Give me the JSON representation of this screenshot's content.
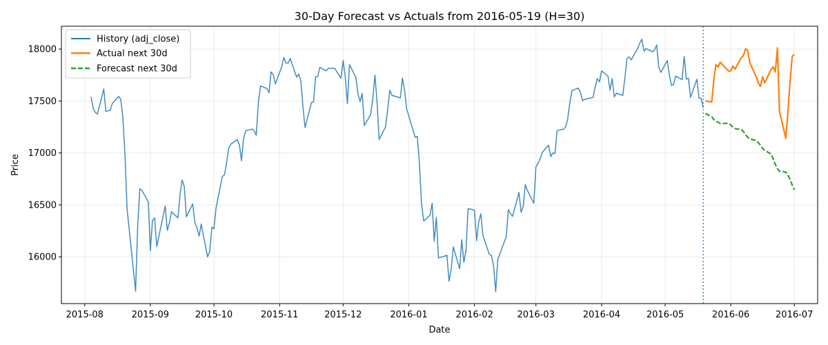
{
  "chart_data": {
    "type": "line",
    "title": "30-Day Forecast vs Actuals from 2016-05-19 (H=30)",
    "xlabel": "Date",
    "ylabel": "Price",
    "x_range": [
      "2015-07-21",
      "2016-07-12"
    ],
    "ylim": [
      15550,
      18220
    ],
    "x_ticks": [
      "2015-08-01",
      "2015-09-01",
      "2015-10-01",
      "2015-11-01",
      "2015-12-01",
      "2016-01-01",
      "2016-02-01",
      "2016-03-01",
      "2016-04-01",
      "2016-05-01",
      "2016-06-01",
      "2016-07-01"
    ],
    "x_tick_labels": [
      "2015-08",
      "2015-09",
      "2015-10",
      "2015-11",
      "2015-12",
      "2016-01",
      "2016-02",
      "2016-03",
      "2016-04",
      "2016-05",
      "2016-06",
      "2016-07"
    ],
    "y_ticks": [
      16000,
      16500,
      17000,
      17500,
      18000
    ],
    "y_tick_labels": [
      "16000",
      "16500",
      "17000",
      "17500",
      "18000"
    ],
    "grid": true,
    "legend_position": "top-left",
    "forecast_origin": "2016-05-19",
    "series": [
      {
        "name": "History (adj_close)",
        "color": "#1f77b4",
        "style": "solid",
        "points": [
          [
            "2015-08-04",
            17540
          ],
          [
            "2015-08-05",
            17430
          ],
          [
            "2015-08-06",
            17390
          ],
          [
            "2015-08-07",
            17375
          ],
          [
            "2015-08-10",
            17615
          ],
          [
            "2015-08-11",
            17400
          ],
          [
            "2015-08-12",
            17405
          ],
          [
            "2015-08-13",
            17410
          ],
          [
            "2015-08-14",
            17475
          ],
          [
            "2015-08-17",
            17545
          ],
          [
            "2015-08-18",
            17515
          ],
          [
            "2015-08-19",
            17350
          ],
          [
            "2015-08-20",
            16990
          ],
          [
            "2015-08-21",
            16460
          ],
          [
            "2015-08-24",
            15870
          ],
          [
            "2015-08-25",
            15670
          ],
          [
            "2015-08-26",
            16290
          ],
          [
            "2015-08-27",
            16655
          ],
          [
            "2015-08-28",
            16640
          ],
          [
            "2015-08-31",
            16530
          ],
          [
            "2015-09-01",
            16060
          ],
          [
            "2015-09-02",
            16350
          ],
          [
            "2015-09-03",
            16375
          ],
          [
            "2015-09-04",
            16100
          ],
          [
            "2015-09-08",
            16490
          ],
          [
            "2015-09-09",
            16255
          ],
          [
            "2015-09-10",
            16330
          ],
          [
            "2015-09-11",
            16435
          ],
          [
            "2015-09-14",
            16375
          ],
          [
            "2015-09-15",
            16600
          ],
          [
            "2015-09-16",
            16740
          ],
          [
            "2015-09-17",
            16675
          ],
          [
            "2015-09-18",
            16385
          ],
          [
            "2015-09-21",
            16510
          ],
          [
            "2015-09-22",
            16330
          ],
          [
            "2015-09-23",
            16280
          ],
          [
            "2015-09-24",
            16200
          ],
          [
            "2015-09-25",
            16315
          ],
          [
            "2015-09-28",
            16000
          ],
          [
            "2015-09-29",
            16050
          ],
          [
            "2015-09-30",
            16285
          ],
          [
            "2015-10-01",
            16270
          ],
          [
            "2015-10-02",
            16470
          ],
          [
            "2015-10-05",
            16775
          ],
          [
            "2015-10-06",
            16790
          ],
          [
            "2015-10-07",
            16910
          ],
          [
            "2015-10-08",
            17050
          ],
          [
            "2015-10-09",
            17085
          ],
          [
            "2015-10-12",
            17130
          ],
          [
            "2015-10-13",
            17080
          ],
          [
            "2015-10-14",
            16925
          ],
          [
            "2015-10-15",
            17140
          ],
          [
            "2015-10-16",
            17215
          ],
          [
            "2015-10-19",
            17230
          ],
          [
            "2015-10-20",
            17215
          ],
          [
            "2015-10-21",
            17170
          ],
          [
            "2015-10-22",
            17490
          ],
          [
            "2015-10-23",
            17645
          ],
          [
            "2015-10-26",
            17620
          ],
          [
            "2015-10-27",
            17580
          ],
          [
            "2015-10-28",
            17780
          ],
          [
            "2015-10-29",
            17755
          ],
          [
            "2015-10-30",
            17665
          ],
          [
            "2015-11-02",
            17830
          ],
          [
            "2015-11-03",
            17920
          ],
          [
            "2015-11-04",
            17865
          ],
          [
            "2015-11-05",
            17865
          ],
          [
            "2015-11-06",
            17910
          ],
          [
            "2015-11-09",
            17730
          ],
          [
            "2015-11-10",
            17760
          ],
          [
            "2015-11-11",
            17700
          ],
          [
            "2015-11-12",
            17450
          ],
          [
            "2015-11-13",
            17245
          ],
          [
            "2015-11-16",
            17485
          ],
          [
            "2015-11-17",
            17490
          ],
          [
            "2015-11-18",
            17735
          ],
          [
            "2015-11-19",
            17735
          ],
          [
            "2015-11-20",
            17825
          ],
          [
            "2015-11-23",
            17790
          ],
          [
            "2015-11-24",
            17815
          ],
          [
            "2015-11-25",
            17815
          ],
          [
            "2015-11-27",
            17815
          ],
          [
            "2015-11-30",
            17720
          ],
          [
            "2015-12-01",
            17890
          ],
          [
            "2015-12-02",
            17730
          ],
          [
            "2015-12-03",
            17475
          ],
          [
            "2015-12-04",
            17850
          ],
          [
            "2015-12-07",
            17730
          ],
          [
            "2015-12-08",
            17570
          ],
          [
            "2015-12-09",
            17495
          ],
          [
            "2015-12-10",
            17575
          ],
          [
            "2015-12-11",
            17265
          ],
          [
            "2015-12-14",
            17370
          ],
          [
            "2015-12-15",
            17525
          ],
          [
            "2015-12-16",
            17750
          ],
          [
            "2015-12-17",
            17495
          ],
          [
            "2015-12-18",
            17130
          ],
          [
            "2015-12-21",
            17250
          ],
          [
            "2015-12-22",
            17415
          ],
          [
            "2015-12-23",
            17605
          ],
          [
            "2015-12-24",
            17555
          ],
          [
            "2015-12-28",
            17530
          ],
          [
            "2015-12-29",
            17720
          ],
          [
            "2015-12-30",
            17605
          ],
          [
            "2015-12-31",
            17425
          ],
          [
            "2016-01-04",
            17150
          ],
          [
            "2016-01-05",
            17160
          ],
          [
            "2016-01-06",
            16905
          ],
          [
            "2016-01-07",
            16515
          ],
          [
            "2016-01-08",
            16345
          ],
          [
            "2016-01-11",
            16400
          ],
          [
            "2016-01-12",
            16515
          ],
          [
            "2016-01-13",
            16150
          ],
          [
            "2016-01-14",
            16380
          ],
          [
            "2016-01-15",
            15990
          ],
          [
            "2016-01-19",
            16015
          ],
          [
            "2016-01-20",
            15765
          ],
          [
            "2016-01-21",
            15880
          ],
          [
            "2016-01-22",
            16095
          ],
          [
            "2016-01-25",
            15885
          ],
          [
            "2016-01-26",
            16165
          ],
          [
            "2016-01-27",
            15945
          ],
          [
            "2016-01-28",
            16070
          ],
          [
            "2016-01-29",
            16465
          ],
          [
            "2016-02-01",
            16450
          ],
          [
            "2016-02-02",
            16155
          ],
          [
            "2016-02-03",
            16335
          ],
          [
            "2016-02-04",
            16415
          ],
          [
            "2016-02-05",
            16205
          ],
          [
            "2016-02-08",
            16025
          ],
          [
            "2016-02-09",
            16015
          ],
          [
            "2016-02-10",
            15915
          ],
          [
            "2016-02-11",
            15665
          ],
          [
            "2016-02-12",
            15975
          ],
          [
            "2016-02-16",
            16195
          ],
          [
            "2016-02-17",
            16455
          ],
          [
            "2016-02-18",
            16415
          ],
          [
            "2016-02-19",
            16390
          ],
          [
            "2016-02-22",
            16620
          ],
          [
            "2016-02-23",
            16430
          ],
          [
            "2016-02-24",
            16485
          ],
          [
            "2016-02-25",
            16695
          ],
          [
            "2016-02-26",
            16640
          ],
          [
            "2016-02-29",
            16515
          ],
          [
            "2016-03-01",
            16865
          ],
          [
            "2016-03-02",
            16900
          ],
          [
            "2016-03-03",
            16945
          ],
          [
            "2016-03-04",
            17005
          ],
          [
            "2016-03-07",
            17075
          ],
          [
            "2016-03-08",
            16965
          ],
          [
            "2016-03-09",
            17000
          ],
          [
            "2016-03-10",
            16995
          ],
          [
            "2016-03-11",
            17215
          ],
          [
            "2016-03-14",
            17230
          ],
          [
            "2016-03-15",
            17250
          ],
          [
            "2016-03-16",
            17325
          ],
          [
            "2016-03-17",
            17480
          ],
          [
            "2016-03-18",
            17600
          ],
          [
            "2016-03-21",
            17625
          ],
          [
            "2016-03-22",
            17585
          ],
          [
            "2016-03-23",
            17505
          ],
          [
            "2016-03-24",
            17515
          ],
          [
            "2016-03-28",
            17535
          ],
          [
            "2016-03-29",
            17635
          ],
          [
            "2016-03-30",
            17715
          ],
          [
            "2016-03-31",
            17685
          ],
          [
            "2016-04-01",
            17790
          ],
          [
            "2016-04-04",
            17740
          ],
          [
            "2016-04-05",
            17605
          ],
          [
            "2016-04-06",
            17715
          ],
          [
            "2016-04-07",
            17540
          ],
          [
            "2016-04-08",
            17575
          ],
          [
            "2016-04-11",
            17555
          ],
          [
            "2016-04-12",
            17720
          ],
          [
            "2016-04-13",
            17910
          ],
          [
            "2016-04-14",
            17925
          ],
          [
            "2016-04-15",
            17895
          ],
          [
            "2016-04-18",
            18005
          ],
          [
            "2016-04-19",
            18055
          ],
          [
            "2016-04-20",
            18095
          ],
          [
            "2016-04-21",
            17980
          ],
          [
            "2016-04-22",
            18005
          ],
          [
            "2016-04-25",
            17975
          ],
          [
            "2016-04-26",
            17990
          ],
          [
            "2016-04-27",
            18040
          ],
          [
            "2016-04-28",
            17830
          ],
          [
            "2016-04-29",
            17775
          ],
          [
            "2016-05-02",
            17890
          ],
          [
            "2016-05-03",
            17750
          ],
          [
            "2016-05-04",
            17650
          ],
          [
            "2016-05-05",
            17660
          ],
          [
            "2016-05-06",
            17740
          ],
          [
            "2016-05-09",
            17705
          ],
          [
            "2016-05-10",
            17930
          ],
          [
            "2016-05-11",
            17710
          ],
          [
            "2016-05-12",
            17720
          ],
          [
            "2016-05-13",
            17535
          ],
          [
            "2016-05-16",
            17710
          ],
          [
            "2016-05-17",
            17530
          ],
          [
            "2016-05-18",
            17525
          ],
          [
            "2016-05-19",
            17435
          ]
        ]
      },
      {
        "name": "Actual next 30d",
        "color": "#ff7f0e",
        "style": "solid",
        "points": [
          [
            "2016-05-20",
            17500
          ],
          [
            "2016-05-23",
            17492
          ],
          [
            "2016-05-24",
            17706
          ],
          [
            "2016-05-25",
            17851
          ],
          [
            "2016-05-26",
            17828
          ],
          [
            "2016-05-27",
            17873
          ],
          [
            "2016-05-31",
            17787
          ],
          [
            "2016-06-01",
            17789
          ],
          [
            "2016-06-02",
            17838
          ],
          [
            "2016-06-03",
            17807
          ],
          [
            "2016-06-06",
            17920
          ],
          [
            "2016-06-07",
            17938
          ],
          [
            "2016-06-08",
            18005
          ],
          [
            "2016-06-09",
            17985
          ],
          [
            "2016-06-10",
            17865
          ],
          [
            "2016-06-13",
            17733
          ],
          [
            "2016-06-14",
            17675
          ],
          [
            "2016-06-15",
            17640
          ],
          [
            "2016-06-16",
            17733
          ],
          [
            "2016-06-17",
            17675
          ],
          [
            "2016-06-20",
            17804
          ],
          [
            "2016-06-21",
            17830
          ],
          [
            "2016-06-22",
            17780
          ],
          [
            "2016-06-23",
            18011
          ],
          [
            "2016-06-24",
            17400
          ],
          [
            "2016-06-27",
            17140
          ],
          [
            "2016-06-28",
            17410
          ],
          [
            "2016-06-29",
            17695
          ],
          [
            "2016-06-30",
            17930
          ],
          [
            "2016-07-01",
            17949
          ]
        ]
      },
      {
        "name": "Forecast next 30d",
        "color": "#2ca02c",
        "style": "dashed",
        "points": [
          [
            "2016-05-20",
            17380
          ],
          [
            "2016-05-23",
            17350
          ],
          [
            "2016-05-24",
            17320
          ],
          [
            "2016-05-25",
            17305
          ],
          [
            "2016-05-26",
            17295
          ],
          [
            "2016-05-27",
            17285
          ],
          [
            "2016-05-31",
            17285
          ],
          [
            "2016-06-01",
            17270
          ],
          [
            "2016-06-02",
            17245
          ],
          [
            "2016-06-03",
            17235
          ],
          [
            "2016-06-06",
            17225
          ],
          [
            "2016-06-07",
            17205
          ],
          [
            "2016-06-08",
            17175
          ],
          [
            "2016-06-09",
            17150
          ],
          [
            "2016-06-10",
            17135
          ],
          [
            "2016-06-13",
            17120
          ],
          [
            "2016-06-14",
            17100
          ],
          [
            "2016-06-15",
            17075
          ],
          [
            "2016-06-16",
            17045
          ],
          [
            "2016-06-17",
            17025
          ],
          [
            "2016-06-20",
            16990
          ],
          [
            "2016-06-21",
            16945
          ],
          [
            "2016-06-22",
            16890
          ],
          [
            "2016-06-23",
            16850
          ],
          [
            "2016-06-24",
            16825
          ],
          [
            "2016-06-27",
            16815
          ],
          [
            "2016-06-28",
            16785
          ],
          [
            "2016-06-29",
            16745
          ],
          [
            "2016-06-30",
            16690
          ],
          [
            "2016-07-01",
            16645
          ]
        ]
      }
    ]
  }
}
